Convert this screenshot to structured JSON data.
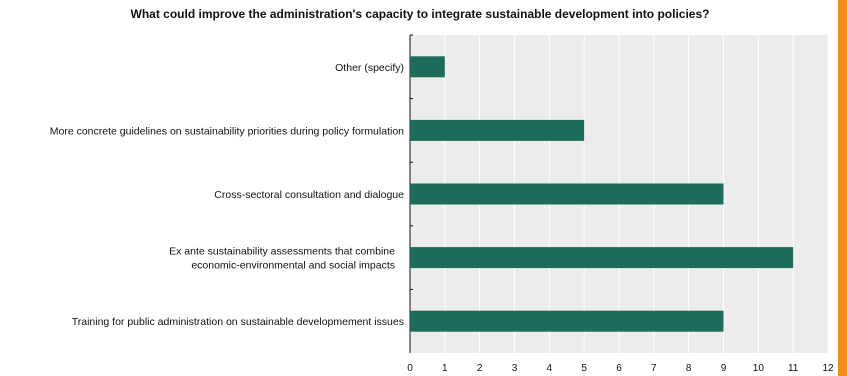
{
  "chart_data": {
    "type": "bar",
    "orientation": "horizontal",
    "title": "What could improve the administration's capacity to integrate sustainable development into policies?",
    "categories": [
      [
        "Other (specify)"
      ],
      [
        "More concrete guidelines on sustainability priorities during policy formulation"
      ],
      [
        "Cross-sectoral consultation and dialogue"
      ],
      [
        "Ex ante sustainability assessments that combine",
        "economic-environmental and social impacts"
      ],
      [
        "Training for public administration on sustainable developmement issues"
      ]
    ],
    "values": [
      1,
      5,
      9,
      11,
      9
    ],
    "xlim": [
      0,
      12
    ],
    "xticks": [
      "0",
      "1",
      "2",
      "3",
      "4",
      "5",
      "6",
      "7",
      "8",
      "9",
      "10",
      "11",
      "12"
    ],
    "xlabel": "",
    "ylabel": "",
    "grid": true,
    "colors": {
      "bar": "#1d6b5a",
      "plot_background": "#ececec",
      "gridline": "#ffffff",
      "accent": "#f28c1c"
    }
  }
}
